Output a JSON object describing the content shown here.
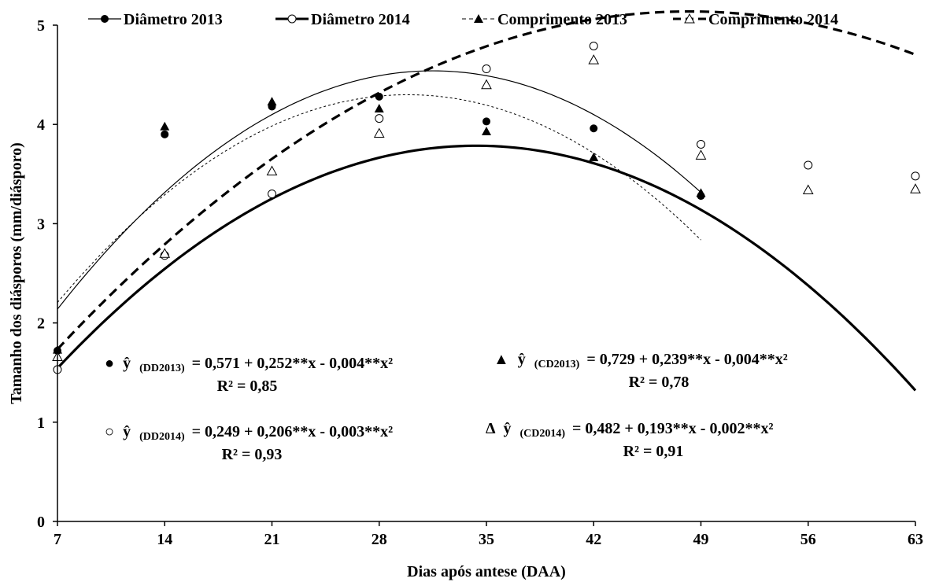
{
  "chart_data": {
    "type": "scatter",
    "title": "",
    "xlabel": "Dias após antese (DAA)",
    "ylabel": "Tamanho dos diásporos (mm/diásporo)",
    "xlim": [
      7,
      63
    ],
    "ylim": [
      0,
      5
    ],
    "xticks": [
      7,
      14,
      21,
      28,
      35,
      42,
      49,
      56,
      63
    ],
    "yticks": [
      0,
      1,
      2,
      3,
      4,
      5
    ],
    "grid": false,
    "legend_position": "top",
    "series": [
      {
        "name": "Diâmetro 2013",
        "marker": "filled-circle",
        "line": "thin-solid",
        "x": [
          7,
          14,
          21,
          28,
          35,
          42,
          49
        ],
        "y": [
          1.72,
          3.9,
          4.18,
          4.28,
          4.03,
          3.96,
          3.28
        ],
        "fit": {
          "a": 0.571,
          "b": 0.252,
          "c": -0.004,
          "x_range": [
            7,
            49
          ]
        }
      },
      {
        "name": "Diâmetro 2014",
        "marker": "open-circle",
        "line": "thick-solid",
        "x": [
          7,
          14,
          21,
          28,
          35,
          42,
          49,
          56,
          63
        ],
        "y": [
          1.53,
          2.68,
          3.3,
          4.06,
          4.56,
          4.79,
          3.8,
          3.59,
          3.48
        ],
        "fit": {
          "a": 0.249,
          "b": 0.206,
          "c": -0.003,
          "x_range": [
            7,
            63
          ]
        }
      },
      {
        "name": "Comprimento 2013",
        "marker": "filled-triangle",
        "line": "thin-dashed",
        "x": [
          7,
          14,
          21,
          28,
          35,
          42,
          49
        ],
        "y": [
          1.73,
          3.98,
          4.23,
          4.16,
          3.93,
          3.67,
          3.31
        ],
        "fit": {
          "a": 0.729,
          "b": 0.239,
          "c": -0.004,
          "x_range": [
            7,
            49
          ]
        }
      },
      {
        "name": "Comprimento 2014",
        "marker": "open-triangle",
        "line": "thick-dashed",
        "x": [
          7,
          14,
          21,
          28,
          35,
          42,
          49,
          56,
          63
        ],
        "y": [
          1.66,
          2.7,
          3.53,
          3.91,
          4.4,
          4.65,
          3.69,
          3.34,
          3.35
        ],
        "fit": {
          "a": 0.482,
          "b": 0.193,
          "c": -0.002,
          "x_range": [
            7,
            63
          ]
        }
      }
    ],
    "annotations": [
      {
        "symbol": "●",
        "yhat": "ŷ",
        "subscript": "(DD2013)",
        "equation": "= 0,571 + 0,252**x - 0,004**x²",
        "r2": "R² = 0,85"
      },
      {
        "symbol": "▲",
        "yhat": "ŷ",
        "subscript": "(CD2013)",
        "equation": "= 0,729 + 0,239**x - 0,004**x²",
        "r2": "R² = 0,78"
      },
      {
        "symbol": "○",
        "yhat": "ŷ",
        "subscript": "(DD2014)",
        "equation": "= 0,249 + 0,206**x - 0,003**x²",
        "r2": "R² = 0,93"
      },
      {
        "symbol": "Δ",
        "yhat": "ŷ",
        "subscript": "(CD2014)",
        "equation": "= 0,482 + 0,193**x - 0,002**x²",
        "r2": "R² = 0,91"
      }
    ]
  }
}
